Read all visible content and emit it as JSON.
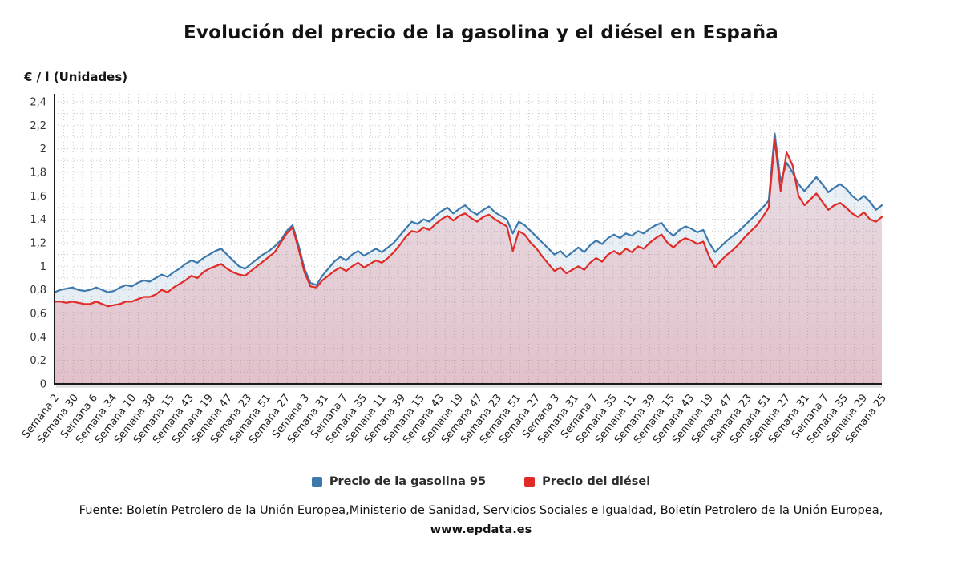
{
  "title": "Evolución del precio de la gasolina y el diésel en España",
  "y_axis_title": "€ / l (Unidades)",
  "legend": [
    {
      "label": "Precio de la gasolina 95",
      "color": "#3d79ad"
    },
    {
      "label": "Precio del diésel",
      "color": "#e02b26"
    }
  ],
  "footer": {
    "prefix": "Fuente: Boletín Petrolero de la Unión Europea,Ministerio de Sanidad, Servicios Sociales e Igualdad, Boletín Petrolero de la Unión Europea, ",
    "link": "www.epdata.es"
  },
  "chart_data": {
    "type": "line",
    "title": "Evolución del precio de la gasolina y el diésel en España",
    "xlabel": "",
    "ylabel": "€ / l (Unidades)",
    "ylim": [
      0,
      2.4
    ],
    "grid": "dotted",
    "legend_position": "bottom",
    "y_ticks": [
      {
        "v": 0,
        "label": "0"
      },
      {
        "v": 0.2,
        "label": "0,2"
      },
      {
        "v": 0.4,
        "label": "0,4"
      },
      {
        "v": 0.6,
        "label": "0,6"
      },
      {
        "v": 0.8,
        "label": "0,8"
      },
      {
        "v": 1,
        "label": "1"
      },
      {
        "v": 1.2,
        "label": "1,2"
      },
      {
        "v": 1.4,
        "label": "1,4"
      },
      {
        "v": 1.6,
        "label": "1,6"
      },
      {
        "v": 1.8,
        "label": "1,8"
      },
      {
        "v": 2,
        "label": "2"
      },
      {
        "v": 2.2,
        "label": "2,2"
      },
      {
        "v": 2.4,
        "label": "2,4"
      }
    ],
    "x_tick_labels": [
      "Semana 2",
      "Semana 30",
      "Semana 6",
      "Semana 34",
      "Semana 10",
      "Semana 38",
      "Semana 15",
      "Semana 43",
      "Semana 19",
      "Semana 47",
      "Semana 23",
      "Semana 51",
      "Semana 27",
      "Semana 3",
      "Semana 31",
      "Semana 7",
      "Semana 35",
      "Semana 11",
      "Semana 39",
      "Semana 15",
      "Semana 43",
      "Semana 19",
      "Semana 47",
      "Semana 23",
      "Semana 51",
      "Semana 27",
      "Semana 3",
      "Semana 31",
      "Semana 7",
      "Semana 35",
      "Semana 11",
      "Semana 39",
      "Semana 15",
      "Semana 43",
      "Semana 19",
      "Semana 47",
      "Semana 23",
      "Semana 51",
      "Semana 27",
      "Semana 31",
      "Semana 7",
      "Semana 35",
      "Semana 29",
      "Semana 25"
    ],
    "series": [
      {
        "name": "Precio de la gasolina 95",
        "color": "#3d79ad",
        "values": [
          0.78,
          0.8,
          0.81,
          0.82,
          0.8,
          0.79,
          0.8,
          0.82,
          0.8,
          0.78,
          0.79,
          0.82,
          0.84,
          0.83,
          0.86,
          0.88,
          0.87,
          0.9,
          0.93,
          0.91,
          0.95,
          0.98,
          1.02,
          1.05,
          1.03,
          1.07,
          1.1,
          1.13,
          1.15,
          1.1,
          1.05,
          1.0,
          0.98,
          1.02,
          1.06,
          1.1,
          1.13,
          1.17,
          1.22,
          1.3,
          1.35,
          1.18,
          0.98,
          0.86,
          0.84,
          0.92,
          0.98,
          1.04,
          1.08,
          1.05,
          1.1,
          1.13,
          1.09,
          1.12,
          1.15,
          1.12,
          1.16,
          1.2,
          1.26,
          1.32,
          1.38,
          1.36,
          1.4,
          1.38,
          1.43,
          1.47,
          1.5,
          1.45,
          1.49,
          1.52,
          1.47,
          1.44,
          1.48,
          1.51,
          1.46,
          1.43,
          1.4,
          1.28,
          1.38,
          1.35,
          1.3,
          1.25,
          1.2,
          1.15,
          1.1,
          1.13,
          1.08,
          1.12,
          1.16,
          1.12,
          1.18,
          1.22,
          1.19,
          1.24,
          1.27,
          1.24,
          1.28,
          1.26,
          1.3,
          1.28,
          1.32,
          1.35,
          1.37,
          1.3,
          1.26,
          1.31,
          1.34,
          1.32,
          1.29,
          1.31,
          1.2,
          1.12,
          1.17,
          1.22,
          1.26,
          1.3,
          1.35,
          1.4,
          1.45,
          1.5,
          1.56,
          2.13,
          1.72,
          1.88,
          1.8,
          1.7,
          1.64,
          1.7,
          1.76,
          1.7,
          1.63,
          1.67,
          1.7,
          1.66,
          1.6,
          1.56,
          1.6,
          1.55,
          1.48,
          1.52
        ]
      },
      {
        "name": "Precio del diésel",
        "color": "#e02b26",
        "values": [
          0.7,
          0.7,
          0.69,
          0.7,
          0.69,
          0.68,
          0.68,
          0.7,
          0.68,
          0.66,
          0.67,
          0.68,
          0.7,
          0.7,
          0.72,
          0.74,
          0.74,
          0.76,
          0.8,
          0.78,
          0.82,
          0.85,
          0.88,
          0.92,
          0.9,
          0.95,
          0.98,
          1.0,
          1.02,
          0.98,
          0.95,
          0.93,
          0.92,
          0.96,
          1.0,
          1.04,
          1.08,
          1.12,
          1.2,
          1.28,
          1.33,
          1.15,
          0.95,
          0.83,
          0.82,
          0.88,
          0.92,
          0.96,
          0.99,
          0.96,
          1.0,
          1.03,
          0.99,
          1.02,
          1.05,
          1.03,
          1.07,
          1.12,
          1.18,
          1.25,
          1.3,
          1.29,
          1.33,
          1.31,
          1.36,
          1.4,
          1.43,
          1.39,
          1.43,
          1.45,
          1.41,
          1.38,
          1.42,
          1.44,
          1.4,
          1.37,
          1.34,
          1.13,
          1.3,
          1.27,
          1.2,
          1.15,
          1.08,
          1.02,
          0.96,
          0.99,
          0.94,
          0.97,
          1.0,
          0.97,
          1.03,
          1.07,
          1.04,
          1.1,
          1.13,
          1.1,
          1.15,
          1.12,
          1.17,
          1.15,
          1.2,
          1.24,
          1.27,
          1.2,
          1.16,
          1.21,
          1.24,
          1.22,
          1.19,
          1.21,
          1.08,
          0.99,
          1.05,
          1.1,
          1.14,
          1.19,
          1.25,
          1.3,
          1.35,
          1.42,
          1.5,
          2.08,
          1.64,
          1.97,
          1.86,
          1.6,
          1.52,
          1.57,
          1.62,
          1.55,
          1.48,
          1.52,
          1.54,
          1.5,
          1.45,
          1.42,
          1.46,
          1.4,
          1.38,
          1.42
        ]
      }
    ]
  }
}
